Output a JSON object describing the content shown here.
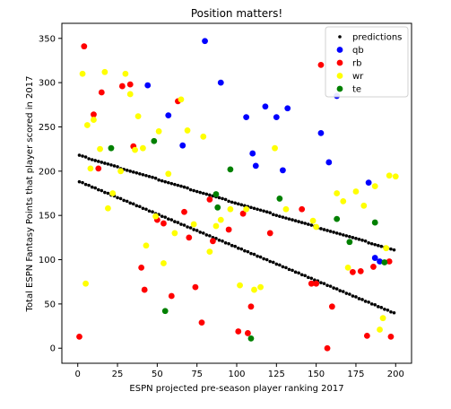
{
  "chart_data": {
    "type": "scatter",
    "title": "Position matters!",
    "xlabel": "ESPN projected pre-season player ranking 2017",
    "ylabel": "Total ESPN Fantasy Points that player scored in 2017",
    "xlim": [
      -10,
      210
    ],
    "ylim": [
      -17,
      367
    ],
    "xticks": [
      0,
      25,
      50,
      75,
      100,
      125,
      150,
      175,
      200
    ],
    "yticks": [
      0,
      50,
      100,
      150,
      200,
      250,
      300,
      350
    ],
    "grid": false,
    "legend_position": "top-right",
    "series": [
      {
        "name": "predictions",
        "color": "#000000",
        "marker": "small",
        "x": [
          1,
          3,
          5,
          7,
          9,
          11,
          13,
          15,
          17,
          19,
          21,
          23,
          25,
          27,
          29,
          31,
          33,
          35,
          37,
          39,
          41,
          43,
          45,
          47,
          49,
          51,
          53,
          55,
          57,
          59,
          61,
          63,
          65,
          67,
          69,
          71,
          73,
          75,
          77,
          79,
          81,
          83,
          85,
          87,
          89,
          91,
          93,
          95,
          97,
          99,
          101,
          103,
          105,
          107,
          109,
          111,
          113,
          115,
          117,
          119,
          121,
          123,
          125,
          127,
          129,
          131,
          133,
          135,
          137,
          139,
          141,
          143,
          145,
          147,
          149,
          151,
          153,
          155,
          157,
          159,
          161,
          163,
          165,
          167,
          169,
          171,
          173,
          175,
          177,
          179,
          181,
          183,
          185,
          187,
          189,
          191,
          193,
          195,
          197,
          199,
          1,
          3,
          5,
          7,
          9,
          11,
          13,
          15,
          17,
          19,
          21,
          23,
          25,
          27,
          29,
          31,
          33,
          35,
          37,
          39,
          41,
          43,
          45,
          47,
          49,
          51,
          53,
          55,
          57,
          59,
          61,
          63,
          65,
          67,
          69,
          71,
          73,
          75,
          77,
          79,
          81,
          83,
          85,
          87,
          89,
          91,
          93,
          95,
          97,
          99,
          101,
          103,
          105,
          107,
          109,
          111,
          113,
          115,
          117,
          119,
          121,
          123,
          125,
          127,
          129,
          131,
          133,
          135,
          137,
          139,
          141,
          143,
          145,
          147,
          149,
          151,
          153,
          155,
          157,
          159,
          161,
          163,
          165,
          167,
          169,
          171,
          173,
          175,
          177,
          179,
          181,
          183,
          185,
          187,
          189,
          191,
          193,
          195,
          197,
          199
        ],
        "y": [
          218,
          217,
          216,
          214,
          213,
          212,
          211,
          210,
          209,
          208,
          207,
          206,
          205,
          203,
          202,
          201,
          200,
          199,
          198,
          197,
          196,
          195,
          194,
          193,
          192,
          190,
          189,
          188,
          187,
          186,
          185,
          184,
          183,
          182,
          181,
          179,
          178,
          177,
          176,
          175,
          174,
          173,
          172,
          171,
          170,
          169,
          168,
          166,
          165,
          164,
          163,
          162,
          161,
          160,
          159,
          158,
          157,
          156,
          155,
          154,
          153,
          151,
          150,
          149,
          148,
          147,
          146,
          145,
          144,
          143,
          142,
          141,
          140,
          139,
          138,
          136,
          135,
          134,
          133,
          132,
          131,
          130,
          129,
          128,
          127,
          126,
          125,
          124,
          123,
          122,
          121,
          119,
          118,
          117,
          116,
          115,
          114,
          113,
          112,
          111,
          188,
          187,
          185,
          184,
          182,
          181,
          179,
          178,
          176,
          175,
          173,
          172,
          170,
          169,
          167,
          166,
          164,
          163,
          161,
          160,
          158,
          157,
          155,
          154,
          152,
          151,
          149,
          148,
          146,
          145,
          143,
          142,
          140,
          139,
          137,
          136,
          134,
          133,
          131,
          130,
          128,
          127,
          125,
          124,
          122,
          121,
          119,
          118,
          116,
          115,
          113,
          112,
          110,
          109,
          107,
          106,
          104,
          103,
          101,
          100,
          98,
          97,
          95,
          94,
          92,
          91,
          89,
          88,
          86,
          85,
          83,
          82,
          80,
          79,
          77,
          76,
          74,
          73,
          71,
          70,
          68,
          67,
          65,
          64,
          62,
          61,
          59,
          58,
          56,
          55,
          53,
          52,
          50,
          49,
          47,
          46,
          44,
          43,
          41,
          40
        ]
      },
      {
        "name": "qb",
        "color": "#0000ff",
        "x": [
          44,
          57,
          66,
          80,
          90,
          106,
          110,
          112,
          118,
          125,
          129,
          132,
          153,
          158,
          163,
          183,
          187,
          190
        ],
        "y": [
          297,
          263,
          229,
          347,
          300,
          261,
          220,
          206,
          273,
          261,
          201,
          271,
          243,
          210,
          285,
          187,
          102,
          98
        ],
        "marker": "circle"
      },
      {
        "name": "rb",
        "color": "#ff0000",
        "x": [
          1,
          4,
          13,
          10,
          15,
          28,
          33,
          35,
          40,
          42,
          50,
          54,
          59,
          63,
          67,
          70,
          74,
          78,
          83,
          85,
          95,
          101,
          104,
          107,
          109,
          121,
          141,
          147,
          150,
          153,
          157,
          160,
          173,
          178,
          182,
          186,
          196,
          197
        ],
        "y": [
          13,
          341,
          203,
          264,
          289,
          296,
          298,
          228,
          91,
          66,
          145,
          141,
          59,
          279,
          154,
          125,
          69,
          29,
          168,
          121,
          134,
          19,
          152,
          17,
          47,
          130,
          157,
          73,
          73,
          320,
          0,
          47,
          86,
          87,
          14,
          92,
          98,
          13
        ],
        "marker": "circle"
      },
      {
        "name": "wr",
        "color": "#ffff00",
        "x": [
          3,
          5,
          6,
          8,
          10,
          14,
          17,
          19,
          22,
          27,
          30,
          33,
          36,
          38,
          41,
          43,
          49,
          51,
          54,
          57,
          61,
          65,
          69,
          73,
          79,
          83,
          87,
          90,
          96,
          102,
          106,
          111,
          115,
          124,
          131,
          148,
          150,
          163,
          167,
          170,
          175,
          180,
          187,
          190,
          192,
          194,
          196,
          200
        ],
        "y": [
          310,
          73,
          252,
          203,
          258,
          225,
          312,
          158,
          175,
          200,
          310,
          287,
          224,
          262,
          226,
          116,
          149,
          245,
          96,
          197,
          130,
          281,
          246,
          140,
          239,
          109,
          138,
          145,
          157,
          71,
          157,
          66,
          69,
          226,
          157,
          144,
          137,
          175,
          166,
          91,
          177,
          161,
          183,
          21,
          34,
          113,
          195,
          194
        ],
        "marker": "circle"
      },
      {
        "name": "te",
        "color": "#008000",
        "x": [
          21,
          48,
          55,
          87,
          88,
          96,
          109,
          127,
          163,
          171,
          187,
          193
        ],
        "y": [
          226,
          234,
          42,
          174,
          159,
          202,
          11,
          169,
          146,
          120,
          142,
          97
        ],
        "marker": "circle"
      }
    ]
  }
}
